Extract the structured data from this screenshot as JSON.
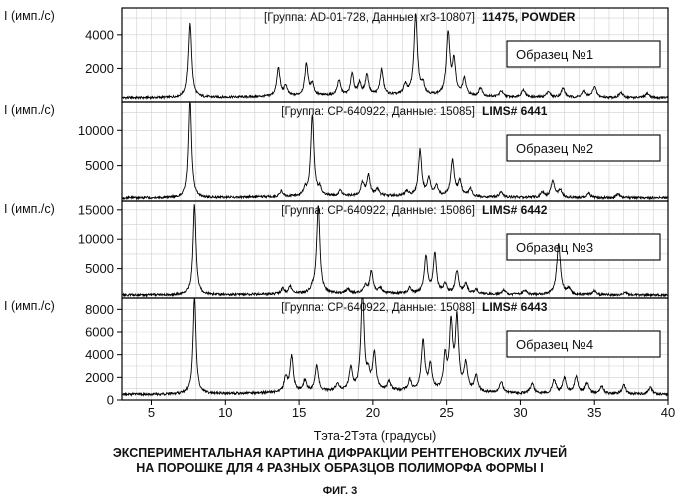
{
  "chart_data": {
    "type": "line",
    "xlabel": "Тэта-2Тэта (градусы)",
    "xlim": [
      3,
      40
    ],
    "x_ticks": [
      5,
      10,
      15,
      20,
      25,
      30,
      35,
      40
    ],
    "grid": true,
    "panels": [
      {
        "ylabel": "I (имп./с)",
        "header": "[Группа: AD-01-728, Данные: xr3-10807]",
        "header_id": "11475, POWDER",
        "sample": "Образец №1",
        "ylim": [
          0,
          5600
        ],
        "y_ticks": [
          2000,
          4000
        ],
        "baseline": 250,
        "peaks": [
          [
            7.6,
            4400,
            0.13
          ],
          [
            13.6,
            1700,
            0.13
          ],
          [
            14.1,
            600,
            0.12
          ],
          [
            15.5,
            1900,
            0.13
          ],
          [
            15.9,
            700,
            0.12
          ],
          [
            17.7,
            900,
            0.13
          ],
          [
            18.6,
            1300,
            0.12
          ],
          [
            19.1,
            700,
            0.12
          ],
          [
            19.6,
            1200,
            0.13
          ],
          [
            20.6,
            1500,
            0.13
          ],
          [
            22.2,
            600,
            0.13
          ],
          [
            22.9,
            4800,
            0.14
          ],
          [
            23.4,
            600,
            0.12
          ],
          [
            25.1,
            3700,
            0.14
          ],
          [
            25.5,
            2000,
            0.13
          ],
          [
            26.2,
            1000,
            0.14
          ],
          [
            27.3,
            500,
            0.14
          ],
          [
            28.7,
            350,
            0.14
          ],
          [
            30.2,
            450,
            0.15
          ],
          [
            31.9,
            350,
            0.15
          ],
          [
            32.9,
            550,
            0.15
          ],
          [
            34.3,
            350,
            0.15
          ],
          [
            35.0,
            650,
            0.15
          ],
          [
            36.8,
            300,
            0.15
          ],
          [
            38.6,
            250,
            0.15
          ]
        ]
      },
      {
        "ylabel": "I (имп./с)",
        "header": "[Группа: CP-640922, Данные: 15085]",
        "header_id": "LIMS# 6441",
        "sample": "Образец №2",
        "ylim": [
          0,
          14000
        ],
        "y_ticks": [
          5000,
          10000
        ],
        "baseline": 450,
        "peaks": [
          [
            7.6,
            13800,
            0.12
          ],
          [
            13.8,
            800,
            0.13
          ],
          [
            15.4,
            900,
            0.12
          ],
          [
            15.9,
            11500,
            0.13
          ],
          [
            16.4,
            1000,
            0.12
          ],
          [
            17.8,
            800,
            0.13
          ],
          [
            19.3,
            1800,
            0.13
          ],
          [
            19.7,
            2900,
            0.13
          ],
          [
            20.3,
            1000,
            0.13
          ],
          [
            22.3,
            700,
            0.13
          ],
          [
            23.2,
            6500,
            0.13
          ],
          [
            23.8,
            2500,
            0.13
          ],
          [
            24.3,
            1500,
            0.13
          ],
          [
            25.4,
            5100,
            0.14
          ],
          [
            25.9,
            2200,
            0.13
          ],
          [
            26.6,
            1100,
            0.14
          ],
          [
            28.7,
            700,
            0.14
          ],
          [
            31.5,
            700,
            0.15
          ],
          [
            32.2,
            2300,
            0.15
          ],
          [
            32.7,
            1100,
            0.14
          ],
          [
            34.6,
            600,
            0.15
          ],
          [
            36.6,
            500,
            0.15
          ]
        ]
      },
      {
        "ylabel": "I (имп./с)",
        "header": "[Группа: CP-640922, Данные: 15086]",
        "header_id": "LIMS# 6442",
        "sample": "Образец №3",
        "ylim": [
          0,
          16500
        ],
        "y_ticks": [
          5000,
          10000,
          15000
        ],
        "baseline": 500,
        "peaks": [
          [
            7.9,
            15400,
            0.12
          ],
          [
            13.9,
            900,
            0.13
          ],
          [
            14.4,
            1300,
            0.12
          ],
          [
            15.9,
            600,
            0.12
          ],
          [
            16.3,
            15000,
            0.13
          ],
          [
            18.3,
            700,
            0.13
          ],
          [
            19.5,
            1200,
            0.13
          ],
          [
            19.9,
            3700,
            0.13
          ],
          [
            20.5,
            900,
            0.13
          ],
          [
            22.5,
            900,
            0.13
          ],
          [
            23.6,
            6300,
            0.13
          ],
          [
            24.2,
            6700,
            0.13
          ],
          [
            24.9,
            1600,
            0.13
          ],
          [
            25.7,
            3800,
            0.14
          ],
          [
            26.3,
            1700,
            0.13
          ],
          [
            27.0,
            800,
            0.14
          ],
          [
            28.9,
            700,
            0.14
          ],
          [
            30.3,
            700,
            0.15
          ],
          [
            32.6,
            8700,
            0.15
          ],
          [
            33.3,
            1000,
            0.14
          ],
          [
            35.0,
            700,
            0.15
          ],
          [
            37.1,
            500,
            0.15
          ]
        ]
      },
      {
        "ylabel": "I (имп./с)",
        "header": "[Группа: CP-640922, Данные: 15088]",
        "header_id": "LIMS# 6443",
        "sample": "Образец №4",
        "ylim": [
          0,
          9000
        ],
        "y_ticks": [
          0,
          2000,
          4000,
          6000,
          8000
        ],
        "baseline": 500,
        "peaks": [
          [
            7.9,
            8600,
            0.12
          ],
          [
            14.1,
            1300,
            0.13
          ],
          [
            14.5,
            3100,
            0.13
          ],
          [
            15.4,
            1000,
            0.12
          ],
          [
            16.2,
            2300,
            0.13
          ],
          [
            17.6,
            600,
            0.13
          ],
          [
            18.5,
            2000,
            0.13
          ],
          [
            19.3,
            8800,
            0.13
          ],
          [
            19.7,
            1200,
            0.12
          ],
          [
            20.1,
            3300,
            0.13
          ],
          [
            21.1,
            800,
            0.13
          ],
          [
            22.5,
            900,
            0.13
          ],
          [
            23.4,
            4400,
            0.14
          ],
          [
            23.9,
            2200,
            0.13
          ],
          [
            24.9,
            2900,
            0.13
          ],
          [
            25.3,
            5800,
            0.13
          ],
          [
            25.7,
            6300,
            0.13
          ],
          [
            26.3,
            2400,
            0.14
          ],
          [
            27.0,
            1400,
            0.14
          ],
          [
            28.7,
            1000,
            0.14
          ],
          [
            30.8,
            900,
            0.15
          ],
          [
            32.3,
            1200,
            0.15
          ],
          [
            33.0,
            1400,
            0.15
          ],
          [
            33.8,
            1500,
            0.15
          ],
          [
            34.5,
            900,
            0.15
          ],
          [
            35.5,
            700,
            0.15
          ],
          [
            37.0,
            800,
            0.15
          ],
          [
            38.8,
            600,
            0.15
          ]
        ]
      }
    ]
  },
  "caption": {
    "line1": "ЭКСПЕРИМЕНТАЛЬНАЯ КАРТИНА ДИФРАКЦИИ РЕНТГЕНОВСКИХ ЛУЧЕЙ",
    "line2": "НА ПОРОШКЕ ДЛЯ 4 РАЗНЫХ ОБРАЗЦОВ ПОЛИМОРФА ФОРМЫ I",
    "figure": "ФИГ. 3"
  }
}
